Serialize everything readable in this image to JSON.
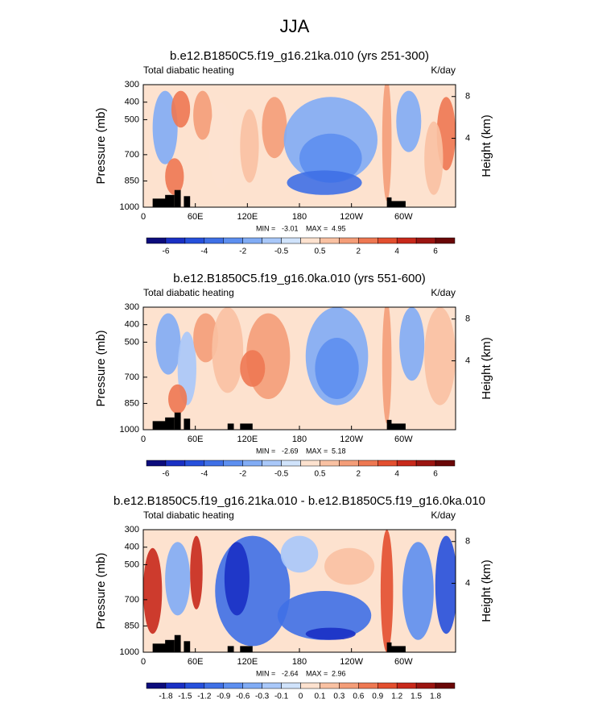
{
  "title": "JJA",
  "chart_data": [
    {
      "type": "contour",
      "title": "b.e12.B1850C5.f19_g16.21ka.010 (yrs 251-300)",
      "left_label": "Total diabatic heating",
      "right_label": "K/day",
      "ylabel": "Pressure (mb)",
      "y2label": "Height (km)",
      "xlim": [
        0,
        360
      ],
      "xticks": [
        0,
        {
          "value": 60,
          "label": "60E"
        },
        {
          "value": 120,
          "label": "120E"
        },
        180,
        {
          "value": 240,
          "label": "120W"
        },
        {
          "value": 300,
          "label": "60W"
        }
      ],
      "ylim": [
        1000,
        300
      ],
      "yticks": [
        300,
        400,
        500,
        700,
        850,
        1000
      ],
      "y2ticks": [
        4,
        8
      ],
      "y2_scale_height": 8,
      "min_label": "MIN =",
      "min": -3.01,
      "max_label": "MAX =",
      "max": 4.95,
      "colorbar_ticks": [
        -6,
        -4,
        -2,
        -0.5,
        0.5,
        2,
        4,
        6
      ],
      "colorbar_colors": [
        "#0c0c7c",
        "#1a30c4",
        "#2650dc",
        "#3f70e6",
        "#5d8ff0",
        "#81acf5",
        "#a9c8f9",
        "#d0e3fb",
        "#fde2cf",
        "#f9c1a2",
        "#f49d78",
        "#ee7852",
        "#e34f2f",
        "#c8291b",
        "#9b1511",
        "#6a0707"
      ]
    },
    {
      "type": "contour",
      "title": "b.e12.B1850C5.f19_g16.0ka.010 (yrs 551-600)",
      "left_label": "Total diabatic heating",
      "right_label": "K/day",
      "ylabel": "Pressure (mb)",
      "y2label": "Height (km)",
      "xlim": [
        0,
        360
      ],
      "xticks": [
        0,
        {
          "value": 60,
          "label": "60E"
        },
        {
          "value": 120,
          "label": "120E"
        },
        180,
        {
          "value": 240,
          "label": "120W"
        },
        {
          "value": 300,
          "label": "60W"
        }
      ],
      "ylim": [
        1000,
        300
      ],
      "yticks": [
        300,
        400,
        500,
        700,
        850,
        1000
      ],
      "y2ticks": [
        4,
        8
      ],
      "y2_scale_height": 8,
      "min_label": "MIN =",
      "min": -2.69,
      "max_label": "MAX =",
      "max": 5.18,
      "colorbar_ticks": [
        -6,
        -4,
        -2,
        -0.5,
        0.5,
        2,
        4,
        6
      ],
      "colorbar_colors": [
        "#0c0c7c",
        "#1a30c4",
        "#2650dc",
        "#3f70e6",
        "#5d8ff0",
        "#81acf5",
        "#a9c8f9",
        "#d0e3fb",
        "#fde2cf",
        "#f9c1a2",
        "#f49d78",
        "#ee7852",
        "#e34f2f",
        "#c8291b",
        "#9b1511",
        "#6a0707"
      ]
    },
    {
      "type": "contour",
      "title": "b.e12.B1850C5.f19_g16.21ka.010 - b.e12.B1850C5.f19_g16.0ka.010",
      "left_label": "Total diabatic heating",
      "right_label": "K/day",
      "ylabel": "Pressure (mb)",
      "y2label": "Height (km)",
      "xlim": [
        0,
        360
      ],
      "xticks": [
        0,
        {
          "value": 60,
          "label": "60E"
        },
        {
          "value": 120,
          "label": "120E"
        },
        180,
        {
          "value": 240,
          "label": "120W"
        },
        {
          "value": 300,
          "label": "60W"
        }
      ],
      "ylim": [
        1000,
        300
      ],
      "yticks": [
        300,
        400,
        500,
        700,
        850,
        1000
      ],
      "y2ticks": [
        4,
        8
      ],
      "y2_scale_height": 8,
      "min_label": "MIN =",
      "min": -2.64,
      "max_label": "MAX =",
      "max": 2.96,
      "colorbar_ticks": [
        -1.8,
        -1.5,
        -1.2,
        -0.9,
        -0.6,
        -0.3,
        -0.1,
        0,
        0.1,
        0.3,
        0.6,
        0.9,
        1.2,
        1.5,
        1.8
      ],
      "colorbar_colors": [
        "#0c0c7c",
        "#1a30c4",
        "#2650dc",
        "#3f70e6",
        "#5d8ff0",
        "#81acf5",
        "#a9c8f9",
        "#d0e3fb",
        "#fde2cf",
        "#f9c1a2",
        "#f49d78",
        "#ee7852",
        "#e34f2f",
        "#c8291b",
        "#9b1511",
        "#6a0707"
      ]
    }
  ]
}
